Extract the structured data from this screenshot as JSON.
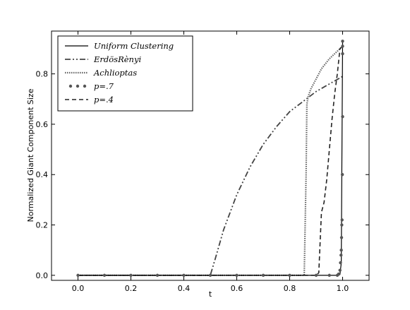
{
  "chart_data": {
    "type": "line",
    "xlabel": "t",
    "ylabel": "Normalized Giant Component Size",
    "xlim": [
      -0.1,
      1.1
    ],
    "ylim": [
      -0.02,
      0.97
    ],
    "x_ticks": [
      "0.0",
      "0.2",
      "0.4",
      "0.6",
      "0.8",
      "1.0"
    ],
    "y_ticks": [
      "0.0",
      "0.2",
      "0.4",
      "0.6",
      "0.8"
    ],
    "grid": false,
    "legend_position": "top-left",
    "series": [
      {
        "name": "Uniform Clustering",
        "style": "solid",
        "color": "#000000",
        "x": [
          0.0,
          0.1,
          0.2,
          0.3,
          0.4,
          0.5,
          0.6,
          0.7,
          0.8,
          0.9,
          0.97,
          0.985,
          0.99,
          0.995,
          1.0
        ],
        "y": [
          0.0,
          0.0,
          0.0,
          0.0,
          0.0,
          0.0,
          0.0,
          0.0,
          0.0,
          0.0,
          0.0,
          0.0,
          0.003,
          0.05,
          0.93
        ]
      },
      {
        "name": "ErdösRènyi",
        "style": "dashdot",
        "color": "#444444",
        "x": [
          0.0,
          0.1,
          0.2,
          0.3,
          0.4,
          0.49,
          0.5,
          0.52,
          0.55,
          0.6,
          0.65,
          0.7,
          0.75,
          0.8,
          0.85,
          0.9,
          0.95,
          1.0
        ],
        "y": [
          0.0,
          0.0,
          0.0,
          0.0,
          0.0,
          0.0,
          0.0,
          0.07,
          0.18,
          0.32,
          0.43,
          0.52,
          0.59,
          0.65,
          0.69,
          0.73,
          0.76,
          0.79
        ]
      },
      {
        "name": "Achlioptas",
        "style": "dotted",
        "color": "#666666",
        "x": [
          0.0,
          0.2,
          0.4,
          0.6,
          0.8,
          0.855,
          0.862,
          0.865,
          0.87,
          0.88,
          0.9,
          0.92,
          0.95,
          0.98,
          1.0
        ],
        "y": [
          0.0,
          0.0,
          0.0,
          0.0,
          0.0,
          0.0,
          0.4,
          0.68,
          0.71,
          0.74,
          0.78,
          0.82,
          0.86,
          0.89,
          0.91
        ]
      },
      {
        "name": "p=.7",
        "style": "points",
        "color": "#555555",
        "x": [
          0.0,
          0.1,
          0.2,
          0.3,
          0.4,
          0.5,
          0.6,
          0.7,
          0.8,
          0.9,
          0.95,
          0.98,
          0.985,
          0.99,
          0.992,
          0.994,
          0.995,
          0.996,
          0.997,
          0.998,
          0.999,
          1.0,
          1.0,
          1.0,
          1.0
        ],
        "y": [
          0.0,
          0.0,
          0.0,
          0.0,
          0.0,
          0.0,
          0.0,
          0.0,
          0.0,
          0.0,
          0.0,
          0.0,
          0.005,
          0.02,
          0.05,
          0.08,
          0.1,
          0.15,
          0.2,
          0.22,
          0.4,
          0.63,
          0.88,
          0.91,
          0.93
        ]
      },
      {
        "name": "p=.4",
        "style": "dashed",
        "color": "#222222",
        "x": [
          0.0,
          0.2,
          0.4,
          0.6,
          0.8,
          0.9,
          0.91,
          0.92,
          0.93,
          0.94,
          0.95,
          0.96,
          0.97,
          0.98,
          0.99,
          1.0
        ],
        "y": [
          0.0,
          0.0,
          0.0,
          0.0,
          0.0,
          0.0,
          0.01,
          0.25,
          0.29,
          0.38,
          0.5,
          0.62,
          0.72,
          0.8,
          0.9,
          0.91
        ]
      }
    ]
  }
}
